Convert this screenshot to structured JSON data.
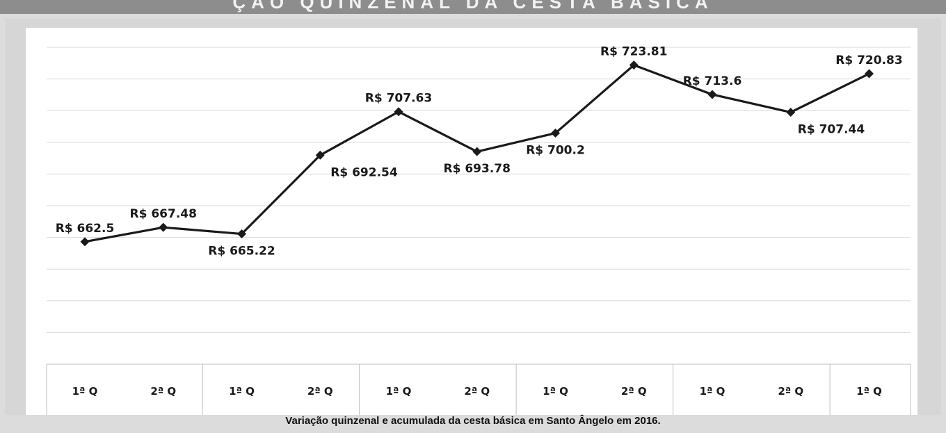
{
  "header": {
    "banner_text": "ÇÃO QUINZENAL DA CESTA BÁSICA"
  },
  "caption": "Variação quinzenal e acumulada da cesta básica em Santo Ângelo em 2016.",
  "chart_data": {
    "type": "line",
    "title": "",
    "xlabel": "",
    "ylabel": "",
    "categories": [
      "1ª Q",
      "2ª Q",
      "1ª Q",
      "2ª Q",
      "1ª Q",
      "2ª Q",
      "1ª Q",
      "2ª Q",
      "1ª Q",
      "2ª Q",
      "1ª Q"
    ],
    "values": [
      662.5,
      667.48,
      665.22,
      692.54,
      707.63,
      693.78,
      700.2,
      723.81,
      713.6,
      707.44,
      720.83
    ],
    "data_labels": [
      "R$ 662.5",
      "R$ 667.48",
      "R$ 665.22",
      "R$ 692.54",
      "R$ 707.63",
      "R$ 693.78",
      "R$ 700.2",
      "R$ 723.81",
      "R$ 713.6",
      "R$ 707.44",
      "R$ 720.83"
    ],
    "ylim": [
      620,
      730
    ],
    "grid": true,
    "legend": "none",
    "line_color": "#1a1a1a"
  }
}
